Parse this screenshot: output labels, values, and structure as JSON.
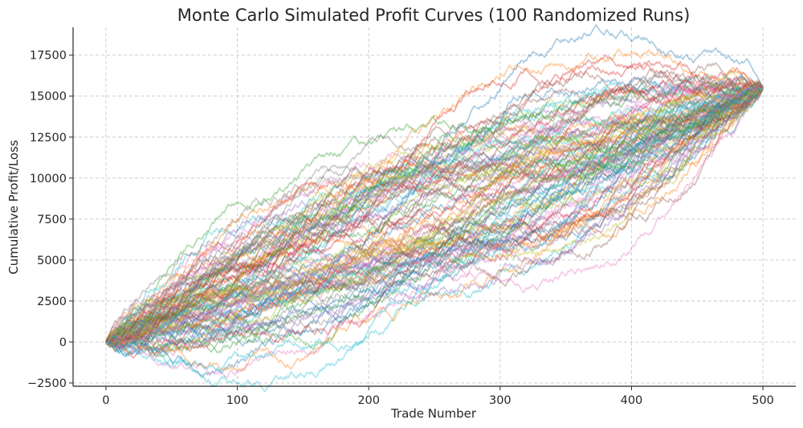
{
  "chart_data": {
    "type": "line",
    "title": "Monte Carlo Simulated Profit Curves (100 Randomized Runs)",
    "xlabel": "Trade Number",
    "ylabel": "Cumulative Profit/Loss",
    "xlim": [
      -25,
      525
    ],
    "ylim": [
      -2700,
      19200
    ],
    "x_ticks": [
      0,
      100,
      200,
      300,
      400,
      500
    ],
    "y_ticks": [
      -2500,
      0,
      2500,
      5000,
      7500,
      10000,
      12500,
      15000,
      17500
    ],
    "x_tick_labels": [
      "0",
      "100",
      "200",
      "300",
      "400",
      "500"
    ],
    "y_tick_labels": [
      "−2500",
      "0",
      "2500",
      "5000",
      "7500",
      "10000",
      "12500",
      "15000",
      "17500"
    ],
    "grid": true,
    "legend": "none",
    "simulation": {
      "runs": 100,
      "trades": 500,
      "start_value": 0,
      "final_value": 15500,
      "step_size": 250,
      "path_spread": 3600
    },
    "palette": [
      "#1f77b4",
      "#ff7f0e",
      "#2ca02c",
      "#d62728",
      "#9467bd",
      "#8c564b",
      "#e377c2",
      "#7f7f7f",
      "#bcbd22",
      "#17becf"
    ]
  }
}
